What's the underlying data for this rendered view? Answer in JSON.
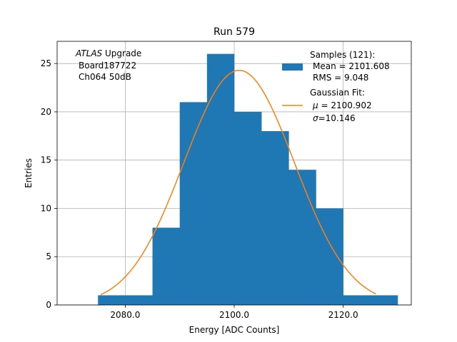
{
  "chart_data": {
    "type": "bar",
    "title": "Run 579",
    "xlabel": "Energy [ADC Counts]",
    "ylabel": "Entries",
    "xlim": [
      2067.5,
      2132.5
    ],
    "ylim": [
      0,
      27.3
    ],
    "grid": true,
    "x_ticks": [
      2080.0,
      2100.0,
      2120.0
    ],
    "x_tick_labels": [
      "2080.0",
      "2100.0",
      "2120.0"
    ],
    "y_ticks": [
      0,
      5,
      10,
      15,
      20,
      25
    ],
    "y_tick_labels": [
      "0",
      "5",
      "10",
      "15",
      "20",
      "25"
    ],
    "histogram": {
      "bin_edges": [
        2075,
        2080,
        2085,
        2090,
        2095,
        2100,
        2105,
        2110,
        2115,
        2120,
        2125,
        2130
      ],
      "counts": [
        1,
        1,
        8,
        21,
        26,
        20,
        18,
        14,
        10,
        1,
        1
      ],
      "color": "#1f77b4"
    },
    "fit": {
      "type": "gaussian",
      "mu": 2100.902,
      "sigma": 10.146,
      "amplitude": 24.3,
      "x_range": [
        2075.5,
        2126.0
      ],
      "color": "#ff7f0e"
    },
    "annotation": {
      "atlas": "ATLAS",
      "upgrade": " Upgrade",
      "board": "Board187722",
      "channel": "Ch064 50dB"
    },
    "legend": {
      "placement": "upper right",
      "samples_title": "Samples (121):",
      "samples_mean": "Mean = 2101.608",
      "samples_rms": "RMS = 9.048",
      "fit_title": "Gaussian Fit:",
      "fit_mu_symbol": "μ",
      "fit_mu_value": " = 2100.902",
      "fit_sigma_symbol": "σ",
      "fit_sigma_value": "=10.146"
    }
  }
}
